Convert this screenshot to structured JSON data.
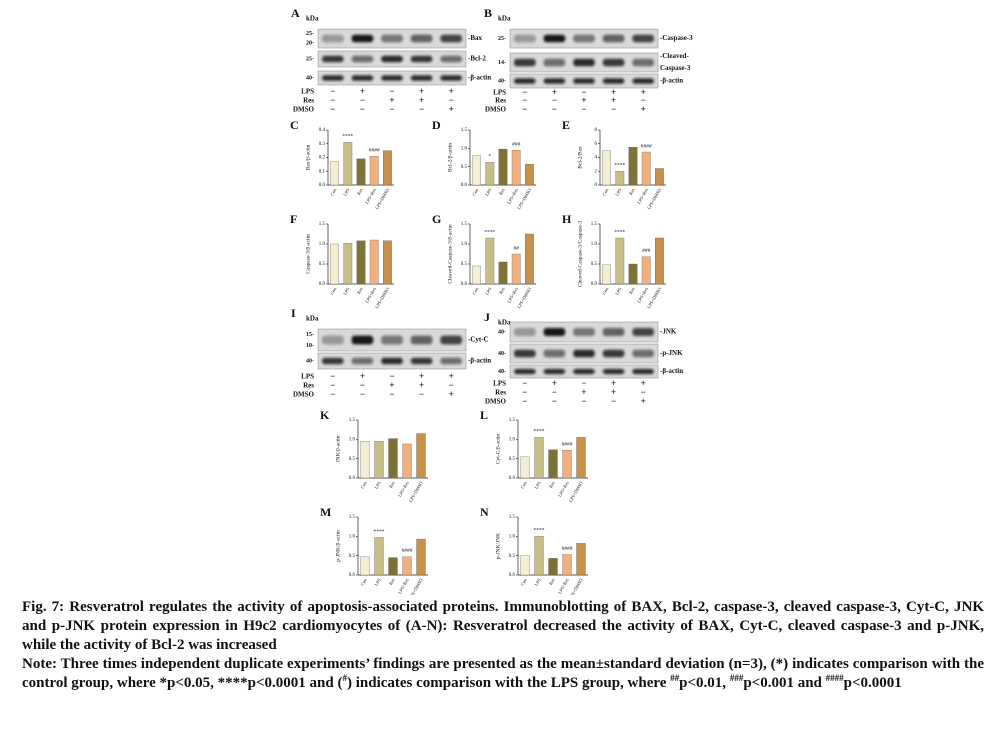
{
  "blots": [
    {
      "letter": "A",
      "unit": "kDa",
      "rows": [
        {
          "markers": [
            "25-",
            "20-"
          ],
          "labels": [
            "-Bax"
          ]
        },
        {
          "markers": [
            "25-"
          ],
          "labels": [
            "-Bcl-2"
          ]
        },
        {
          "markers": [
            "40-"
          ],
          "labels": [
            "-β-actin"
          ]
        }
      ],
      "treatments": [
        {
          "label": "LPS",
          "signs": [
            "−",
            "+",
            "−",
            "+",
            "+"
          ]
        },
        {
          "label": "Res",
          "signs": [
            "−",
            "−",
            "+",
            "+",
            "−"
          ]
        },
        {
          "label": "DMSO",
          "signs": [
            "−",
            "−",
            "−",
            "−",
            "+"
          ]
        }
      ]
    },
    {
      "letter": "B",
      "unit": "kDa",
      "rows": [
        {
          "markers": [
            "25-"
          ],
          "labels": [
            "-Caspase-3"
          ]
        },
        {
          "markers": [
            "14-"
          ],
          "labels": [
            "-Cleaved-",
            "Caspase-3"
          ]
        },
        {
          "markers": [
            "40-"
          ],
          "labels": [
            "-β-actin"
          ]
        }
      ],
      "treatments": [
        {
          "label": "LPS",
          "signs": [
            "−",
            "+",
            "−",
            "+",
            "+"
          ]
        },
        {
          "label": "Res",
          "signs": [
            "−",
            "−",
            "+",
            "+",
            "−"
          ]
        },
        {
          "label": "DMSO",
          "signs": [
            "−",
            "−",
            "−",
            "−",
            "+"
          ]
        }
      ]
    },
    {
      "letter": "I",
      "unit": "kDa",
      "rows": [
        {
          "markers": [
            "15-",
            "10-"
          ],
          "labels": [
            "-Cyt-C"
          ]
        },
        {
          "markers": [
            "40-"
          ],
          "labels": [
            "-β-actin"
          ]
        }
      ],
      "treatments": [
        {
          "label": "LPS",
          "signs": [
            "−",
            "+",
            "−",
            "+",
            "+"
          ]
        },
        {
          "label": "Res",
          "signs": [
            "−",
            "−",
            "+",
            "+",
            "−"
          ]
        },
        {
          "label": "DMSO",
          "signs": [
            "−",
            "−",
            "−",
            "−",
            "+"
          ]
        }
      ]
    },
    {
      "letter": "J",
      "unit": "kDa",
      "rows": [
        {
          "markers": [
            "40-"
          ],
          "labels": [
            "-JNK"
          ]
        },
        {
          "markers": [
            "40-"
          ],
          "labels": [
            "-p-JNK"
          ]
        },
        {
          "markers": [
            "40-"
          ],
          "labels": [
            "-β-actin"
          ]
        }
      ],
      "treatments": [
        {
          "label": "LPS",
          "signs": [
            "−",
            "+",
            "−",
            "+",
            "+"
          ]
        },
        {
          "label": "Res",
          "signs": [
            "−",
            "−",
            "+",
            "+",
            "−"
          ]
        },
        {
          "label": "DMSO",
          "signs": [
            "−",
            "−",
            "−",
            "−",
            "+"
          ]
        }
      ]
    }
  ],
  "chart_data": [
    {
      "type": "bar",
      "panel": "C",
      "y_label": "Bax/β-actin",
      "categories": [
        "Con",
        "LPS",
        "Res",
        "LPS+Res",
        "LPS+DMSO"
      ],
      "values": [
        0.17,
        0.31,
        0.19,
        0.21,
        0.25
      ],
      "colors": [
        "#f4efd4",
        "#c8bf88",
        "#7e7334",
        "#f3b07f",
        "#c7904b"
      ],
      "ylim": [
        0,
        0.4
      ],
      "yticks": [
        {
          "value": 0,
          "label": "0.0"
        },
        0.1,
        0.2,
        0.3,
        0.4
      ],
      "annotations": [
        {
          "text": "****",
          "category": "LPS"
        },
        {
          "text": "####",
          "category": "LPS+Res"
        }
      ]
    },
    {
      "type": "bar",
      "panel": "D",
      "y_label": "Bcl-2/β-actin",
      "categories": [
        "Con",
        "LPS",
        "Res",
        "LPS+Res",
        "LPS+DMSO"
      ],
      "values": [
        0.8,
        0.62,
        0.98,
        0.95,
        0.57
      ],
      "colors": [
        "#f4efd4",
        "#c8bf88",
        "#7e7334",
        "#f3b07f",
        "#c7904b"
      ],
      "ylim": [
        0,
        1.5
      ],
      "yticks": [
        {
          "value": 0,
          "label": "0.0"
        },
        0.5,
        {
          "value": 1,
          "label": "1.0"
        },
        1.5
      ],
      "annotations": [
        {
          "text": "*",
          "category": "LPS"
        },
        {
          "text": "###",
          "category": "LPS+Res"
        }
      ]
    },
    {
      "type": "bar",
      "panel": "E",
      "y_label": "Bcl-2/Bax",
      "categories": [
        "Con",
        "LPS",
        "Res",
        "LPS+Res",
        "LPS+DMSO"
      ],
      "values": [
        5,
        2,
        5.5,
        4.8,
        2.4
      ],
      "colors": [
        "#f4efd4",
        "#c8bf88",
        "#7e7334",
        "#f3b07f",
        "#c7904b"
      ],
      "ylim": [
        0,
        8
      ],
      "yticks": [
        0,
        2,
        4,
        6,
        8
      ],
      "annotations": [
        {
          "text": "****",
          "category": "LPS"
        },
        {
          "text": "####",
          "category": "LPS+Res"
        }
      ]
    },
    {
      "type": "bar",
      "panel": "F",
      "y_label": "Caspase-3/β-actin",
      "categories": [
        "Con",
        "LPS",
        "Res",
        "LPS+Res",
        "LPS+DMSO"
      ],
      "values": [
        1,
        1.02,
        1.08,
        1.1,
        1.08
      ],
      "colors": [
        "#f4efd4",
        "#c8bf88",
        "#7e7334",
        "#f3b07f",
        "#c7904b"
      ],
      "ylim": [
        0,
        1.5
      ],
      "yticks": [
        {
          "value": 0,
          "label": "0.0"
        },
        0.5,
        {
          "value": 1,
          "label": "1.0"
        },
        1.5
      ],
      "annotations": []
    },
    {
      "type": "bar",
      "panel": "G",
      "y_label": "Cleaved-Caspase-3/β-actin",
      "categories": [
        "Con",
        "LPS",
        "Res",
        "LPS+Res",
        "LPS+DMSO"
      ],
      "values": [
        0.45,
        1.15,
        0.55,
        0.75,
        1.25
      ],
      "colors": [
        "#f4efd4",
        "#c8bf88",
        "#7e7334",
        "#f3b07f",
        "#c7904b"
      ],
      "ylim": [
        0,
        1.5
      ],
      "yticks": [
        {
          "value": 0,
          "label": "0.0"
        },
        0.5,
        {
          "value": 1,
          "label": "1.0"
        },
        1.5
      ],
      "annotations": [
        {
          "text": "****",
          "category": "LPS"
        },
        {
          "text": "##",
          "category": "LPS+Res"
        }
      ]
    },
    {
      "type": "bar",
      "panel": "H",
      "y_label": "Cleaved-Caspase-3/Caspase-3",
      "categories": [
        "Con",
        "LPS",
        "Res",
        "LPS+Res",
        "LPS+DMSO"
      ],
      "values": [
        0.48,
        1.15,
        0.5,
        0.68,
        1.15
      ],
      "colors": [
        "#f4efd4",
        "#c8bf88",
        "#7e7334",
        "#f3b07f",
        "#c7904b"
      ],
      "ylim": [
        0,
        1.5
      ],
      "yticks": [
        {
          "value": 0,
          "label": "0.0"
        },
        0.5,
        {
          "value": 1,
          "label": "1.0"
        },
        1.5
      ],
      "annotations": [
        {
          "text": "****",
          "category": "LPS"
        },
        {
          "text": "###",
          "category": "LPS+Res"
        }
      ]
    },
    {
      "type": "bar",
      "panel": "K",
      "y_label": "JNK/β-actin",
      "categories": [
        "Con",
        "LPS",
        "Res",
        "LPS+Res",
        "LPS+DMSO"
      ],
      "values": [
        0.95,
        0.95,
        1.02,
        0.88,
        1.15
      ],
      "colors": [
        "#f4efd4",
        "#c8bf88",
        "#7e7334",
        "#f3b07f",
        "#c7904b"
      ],
      "ylim": [
        0,
        1.5
      ],
      "yticks": [
        {
          "value": 0,
          "label": "0.0"
        },
        0.5,
        {
          "value": 1,
          "label": "1.0"
        },
        1.5
      ],
      "annotations": []
    },
    {
      "type": "bar",
      "panel": "L",
      "y_label": "Cyt-C/β-actin",
      "categories": [
        "Con",
        "LPS",
        "Res",
        "LPS+Res",
        "LPS+DMSO"
      ],
      "values": [
        0.55,
        1.05,
        0.73,
        0.72,
        1.05
      ],
      "colors": [
        "#f4efd4",
        "#c8bf88",
        "#7e7334",
        "#f3b07f",
        "#c7904b"
      ],
      "ylim": [
        0,
        1.5
      ],
      "yticks": [
        {
          "value": 0,
          "label": "0.0"
        },
        0.5,
        {
          "value": 1,
          "label": "1.0"
        },
        1.5
      ],
      "annotations": [
        {
          "text": "****",
          "category": "LPS"
        },
        {
          "text": "####",
          "category": "LPS+Res"
        }
      ]
    },
    {
      "type": "bar",
      "panel": "M",
      "y_label": "p-JNK/β-actin",
      "categories": [
        "Con",
        "LPS",
        "Res",
        "LPS+Res",
        "LPS+DMSO"
      ],
      "values": [
        0.47,
        0.97,
        0.45,
        0.47,
        0.93
      ],
      "colors": [
        "#f4efd4",
        "#c8bf88",
        "#7e7334",
        "#f3b07f",
        "#c7904b"
      ],
      "ylim": [
        0,
        1.5
      ],
      "yticks": [
        {
          "value": 0,
          "label": "0.0"
        },
        0.5,
        {
          "value": 1,
          "label": "1.0"
        },
        1.5
      ],
      "annotations": [
        {
          "text": "****",
          "category": "LPS"
        },
        {
          "text": "####",
          "category": "LPS+Res"
        }
      ]
    },
    {
      "type": "bar",
      "panel": "N",
      "y_label": "p-JNK/JNK",
      "categories": [
        "Con",
        "LPS",
        "Res",
        "LPS+Res",
        "LPS+DMSO"
      ],
      "values": [
        0.5,
        1.0,
        0.43,
        0.53,
        0.82
      ],
      "colors": [
        "#f4efd4",
        "#c8bf88",
        "#7e7334",
        "#f3b07f",
        "#c7904b"
      ],
      "ylim": [
        0,
        1.5
      ],
      "yticks": [
        {
          "value": 0,
          "label": "0.0"
        },
        0.5,
        {
          "value": 1,
          "label": "1.0"
        },
        1.5
      ],
      "annotations": [
        {
          "text": "****",
          "category": "LPS"
        },
        {
          "text": "####",
          "category": "LPS+Res"
        }
      ]
    }
  ],
  "caption": {
    "title": "Fig. 7: Resveratrol regulates the activity of apoptosis-associated proteins. Immunoblotting of BAX, Bcl-2, caspase-3, cleaved caspase-3, Cyt-C, JNK and p-JNK protein expression in H9c2 cardiomyocytes of (A-N): Resveratrol decreased the activity of BAX, Cyt-C, cleaved caspase-3 and p-JNK, while the activity of Bcl-2 was increased",
    "note": [
      {
        "text": "Note: Three times independent duplicate experiments’ findings are presented as the mean±standard deviation (n=3), (*) indicates comparison with the control group, where *p<0.05, ****p<0.0001 and ("
      },
      {
        "sup": "#"
      },
      {
        "text": ") indicates comparison with the LPS group, where "
      },
      {
        "sup": "##"
      },
      {
        "text": "p<0.01, "
      },
      {
        "sup": "###"
      },
      {
        "text": "p<0.001 and "
      },
      {
        "sup": "####"
      },
      {
        "text": "p<0.0001"
      }
    ]
  }
}
